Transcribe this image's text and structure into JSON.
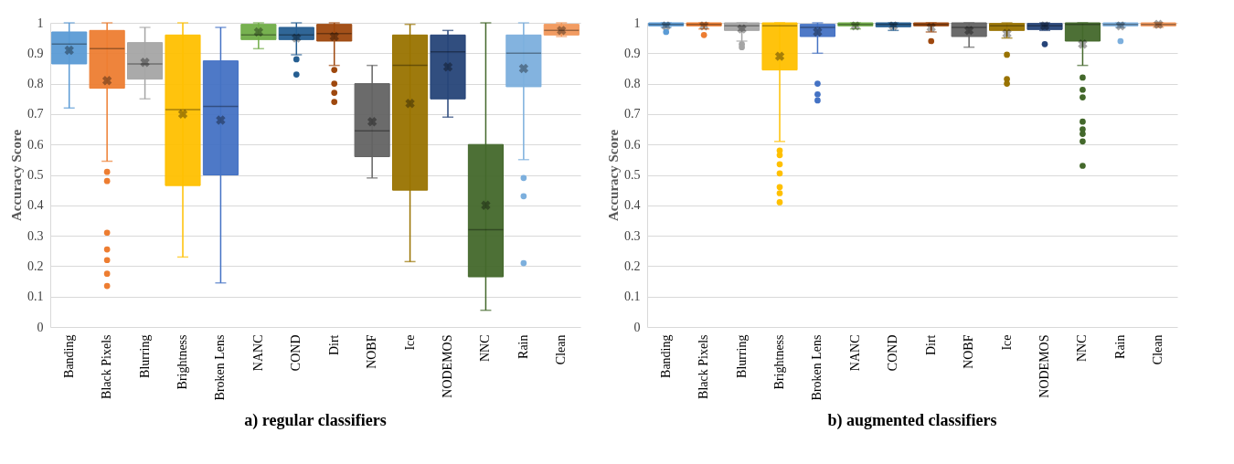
{
  "chart_data": [
    {
      "type": "box",
      "title": "a) regular classifiers",
      "ylabel": "Accuracy Score",
      "categories": [
        "Banding",
        "Black Pixels",
        "Blurring",
        "Brightness",
        "Broken Lens",
        "NANC",
        "COND",
        "Dirt",
        "NOBF",
        "Ice",
        "NODEMOS",
        "NNC",
        "Rain",
        "Clean"
      ],
      "colors": [
        "#5b9bd5",
        "#ed7d31",
        "#a5a5a5",
        "#ffc000",
        "#4472c4",
        "#70ad47",
        "#255e91",
        "#9e480e",
        "#636363",
        "#997300",
        "#264478",
        "#43682b",
        "#7cafdd",
        "#f1975a"
      ],
      "boxes": [
        {
          "low": 0.72,
          "q1": 0.865,
          "median": 0.93,
          "q3": 0.97,
          "high": 1.0,
          "mean": 0.91
        },
        {
          "low": 0.545,
          "q1": 0.785,
          "median": 0.915,
          "q3": 0.975,
          "high": 1.0,
          "mean": 0.81,
          "outliers": [
            0.51,
            0.48,
            0.31,
            0.255,
            0.22,
            0.175,
            0.135
          ]
        },
        {
          "low": 0.75,
          "q1": 0.815,
          "median": 0.865,
          "q3": 0.935,
          "high": 0.985,
          "mean": 0.87
        },
        {
          "low": 0.23,
          "q1": 0.465,
          "median": 0.715,
          "q3": 0.96,
          "high": 1.0,
          "mean": 0.7
        },
        {
          "low": 0.145,
          "q1": 0.5,
          "median": 0.725,
          "q3": 0.875,
          "high": 0.985,
          "mean": 0.68
        },
        {
          "low": 0.915,
          "q1": 0.945,
          "median": 0.96,
          "q3": 0.995,
          "high": 1.0,
          "mean": 0.97
        },
        {
          "low": 0.895,
          "q1": 0.945,
          "median": 0.96,
          "q3": 0.985,
          "high": 1.0,
          "mean": 0.95,
          "outliers": [
            0.88,
            0.83
          ]
        },
        {
          "low": 0.86,
          "q1": 0.94,
          "median": 0.965,
          "q3": 0.995,
          "high": 1.0,
          "mean": 0.955,
          "outliers": [
            0.845,
            0.8,
            0.77,
            0.74
          ]
        },
        {
          "low": 0.49,
          "q1": 0.56,
          "median": 0.645,
          "q3": 0.8,
          "high": 0.86,
          "mean": 0.675
        },
        {
          "low": 0.215,
          "q1": 0.45,
          "median": 0.86,
          "q3": 0.96,
          "high": 0.995,
          "mean": 0.735
        },
        {
          "low": 0.69,
          "q1": 0.75,
          "median": 0.905,
          "q3": 0.96,
          "high": 0.975,
          "mean": 0.855
        },
        {
          "low": 0.055,
          "q1": 0.165,
          "median": 0.32,
          "q3": 0.6,
          "high": 1.0,
          "mean": 0.4
        },
        {
          "low": 0.55,
          "q1": 0.79,
          "median": 0.9,
          "q3": 0.96,
          "high": 1.0,
          "mean": 0.85,
          "outliers": [
            0.49,
            0.43,
            0.21
          ]
        },
        {
          "low": 0.955,
          "q1": 0.96,
          "median": 0.975,
          "q3": 0.995,
          "high": 1.0,
          "mean": 0.975
        }
      ],
      "ylim": [
        0,
        1
      ],
      "yticks": [
        0,
        0.1,
        0.2,
        0.3,
        0.4,
        0.5,
        0.6,
        0.7,
        0.8,
        0.9,
        1
      ],
      "grid": "y"
    },
    {
      "type": "box",
      "title": "b) augmented classifiers",
      "ylabel": "Accuracy Score",
      "categories": [
        "Banding",
        "Black Pixels",
        "Blurring",
        "Brightness",
        "Broken Lens",
        "NANC",
        "COND",
        "Dirt",
        "NOBF",
        "Ice",
        "NODEMOS",
        "NNC",
        "Rain",
        "Clean"
      ],
      "colors": [
        "#5b9bd5",
        "#ed7d31",
        "#a5a5a5",
        "#ffc000",
        "#4472c4",
        "#70ad47",
        "#255e91",
        "#9e480e",
        "#636363",
        "#997300",
        "#264478",
        "#43682b",
        "#7cafdd",
        "#f1975a"
      ],
      "boxes": [
        {
          "low": 0.985,
          "q1": 0.99,
          "median": 0.995,
          "q3": 1.0,
          "high": 1.0,
          "mean": 0.99,
          "outliers": [
            0.97
          ]
        },
        {
          "low": 0.98,
          "q1": 0.99,
          "median": 0.995,
          "q3": 1.0,
          "high": 1.0,
          "mean": 0.99,
          "outliers": [
            0.96
          ]
        },
        {
          "low": 0.94,
          "q1": 0.975,
          "median": 0.99,
          "q3": 1.0,
          "high": 1.0,
          "mean": 0.98,
          "outliers": [
            0.93,
            0.92
          ]
        },
        {
          "low": 0.61,
          "q1": 0.845,
          "median": 0.99,
          "q3": 1.0,
          "high": 1.0,
          "mean": 0.89,
          "outliers": [
            0.58,
            0.565,
            0.535,
            0.505,
            0.46,
            0.44,
            0.41
          ]
        },
        {
          "low": 0.9,
          "q1": 0.955,
          "median": 0.985,
          "q3": 0.995,
          "high": 1.0,
          "mean": 0.97,
          "outliers": [
            0.8,
            0.765,
            0.745
          ]
        },
        {
          "low": 0.98,
          "q1": 0.99,
          "median": 0.995,
          "q3": 1.0,
          "high": 1.0,
          "mean": 0.99
        },
        {
          "low": 0.975,
          "q1": 0.987,
          "median": 0.995,
          "q3": 1.0,
          "high": 1.0,
          "mean": 0.99
        },
        {
          "low": 0.97,
          "q1": 0.99,
          "median": 0.995,
          "q3": 1.0,
          "high": 1.0,
          "mean": 0.985,
          "outliers": [
            0.94
          ]
        },
        {
          "low": 0.92,
          "q1": 0.955,
          "median": 0.985,
          "q3": 1.0,
          "high": 1.0,
          "mean": 0.975
        },
        {
          "low": 0.95,
          "q1": 0.975,
          "median": 0.99,
          "q3": 0.998,
          "high": 1.0,
          "mean": 0.965,
          "outliers": [
            0.895,
            0.815,
            0.8
          ]
        },
        {
          "low": 0.975,
          "q1": 0.978,
          "median": 0.99,
          "q3": 0.998,
          "high": 1.0,
          "mean": 0.99,
          "outliers": [
            0.93
          ]
        },
        {
          "low": 0.86,
          "q1": 0.94,
          "median": 0.995,
          "q3": 1.0,
          "high": 1.0,
          "mean": 0.93,
          "outliers": [
            0.82,
            0.78,
            0.755,
            0.675,
            0.65,
            0.635,
            0.61,
            0.53
          ]
        },
        {
          "low": 0.985,
          "q1": 0.99,
          "median": 0.995,
          "q3": 1.0,
          "high": 1.0,
          "mean": 0.99,
          "outliers": [
            0.94
          ]
        },
        {
          "low": 0.985,
          "q1": 0.99,
          "median": 0.995,
          "q3": 1.0,
          "high": 1.0,
          "mean": 0.995
        }
      ],
      "ylim": [
        0,
        1
      ],
      "yticks": [
        0,
        0.1,
        0.2,
        0.3,
        0.4,
        0.5,
        0.6,
        0.7,
        0.8,
        0.9,
        1
      ],
      "grid": "y"
    }
  ]
}
